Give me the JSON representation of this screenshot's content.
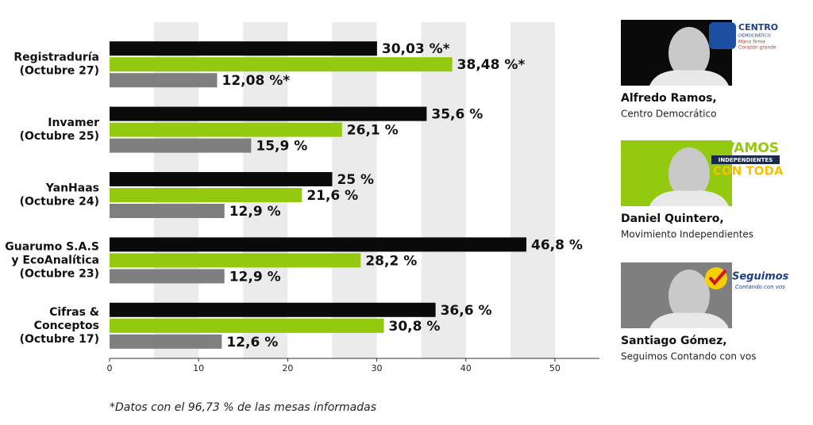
{
  "chart_data": {
    "type": "bar",
    "orientation": "horizontal",
    "categories": [
      "Registraduría\n(Octubre 27)",
      "Invamer\n(Octubre 25)",
      "YanHaas\n(Octubre 24)",
      "Guarumo S.A.S\ny EcoAnalítica\n(Octubre 23)",
      "Cifras &\nConceptos\n(Octubre 17)"
    ],
    "series": [
      {
        "color": "#0a0a0a",
        "values": [
          30.03,
          35.6,
          25,
          46.8,
          36.6
        ],
        "value_labels": [
          "30,03 %*",
          "35,6 %",
          "25 %",
          "46,8 %",
          "36,6 %"
        ]
      },
      {
        "color": "#93c90e",
        "values": [
          38.48,
          26.1,
          21.6,
          28.2,
          30.8
        ],
        "value_labels": [
          "38,48 %*",
          "26,1 %",
          "21,6 %",
          "28,2 %",
          "30,8 %"
        ]
      },
      {
        "color": "#7f7f7f",
        "values": [
          12.08,
          15.9,
          12.9,
          12.9,
          12.6
        ],
        "value_labels": [
          "12,08 %*",
          "15,9 %",
          "12,9 %",
          "12,9 %",
          "12,6 %"
        ]
      }
    ],
    "xlim": [
      0,
      55
    ],
    "xticks": [
      0,
      10,
      20,
      30,
      40,
      50
    ],
    "footnote": "*Datos con el 96,73 %  de las mesas informadas",
    "candidates": [
      {
        "name": "Alfredo Ramos,",
        "party": "Centro Democrático",
        "color": "#0a0a0a",
        "logo": [
          "CENTRO",
          "DEMOCRÁTICO",
          "Mano firme",
          "Corazón grande"
        ]
      },
      {
        "name": "Daniel Quintero,",
        "party": "Movimiento Independientes",
        "color": "#93c90e",
        "logo": [
          "#VAMOS",
          "INDEPENDIENTES",
          "CON TODA"
        ]
      },
      {
        "name": "Santiago Gómez,",
        "party": "Seguimos Contando con vos",
        "color": "#7f7f7f",
        "logo": [
          "Seguimos",
          "Contando con vos"
        ]
      }
    ]
  }
}
